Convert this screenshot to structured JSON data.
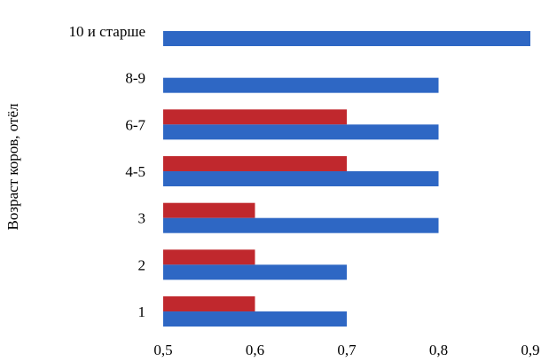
{
  "chart_data": {
    "type": "bar",
    "orientation": "horizontal",
    "title": "",
    "xlabel": "",
    "ylabel": "Возраст коров, отёл",
    "categories": [
      "1",
      "2",
      "3",
      "4-5",
      "6-7",
      "8-9",
      "10 и старше"
    ],
    "series": [
      {
        "color": "#c0282d",
        "values": [
          0.6,
          0.6,
          0.6,
          0.7,
          0.7,
          null,
          null
        ]
      },
      {
        "color": "#2e67c4",
        "values": [
          0.7,
          0.7,
          0.8,
          0.8,
          0.8,
          0.8,
          0.9
        ]
      }
    ],
    "xlim": [
      0.5,
      0.9
    ],
    "xticks": [
      "0,5",
      "0,6",
      "0,7",
      "0,8",
      "0,9"
    ],
    "xtick_values": [
      0.5,
      0.6,
      0.7,
      0.8,
      0.9
    ],
    "grid": false,
    "legend": "none"
  }
}
